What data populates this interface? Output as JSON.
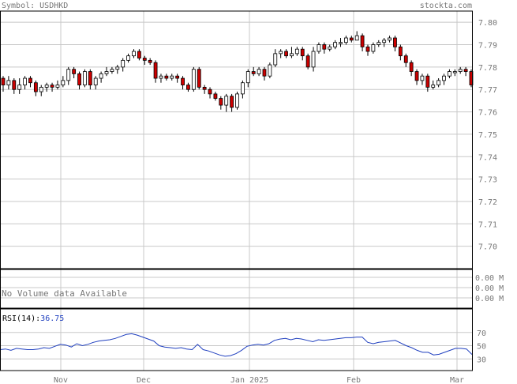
{
  "header": {
    "symbol_label": "Symbol: USDHKD",
    "source": "stockta.com"
  },
  "colors": {
    "grid": "#c8c8c8",
    "frame": "#000000",
    "text": "#777777",
    "up": "#ffffff",
    "down": "#cc0000",
    "wick": "#000000",
    "rsi_line": "#1f3fbf",
    "rsi_value": "#1f3fbf"
  },
  "price_axis": {
    "ticks": [
      "7.80",
      "7.79",
      "7.78",
      "7.77",
      "7.76",
      "7.75",
      "7.74",
      "7.73",
      "7.72",
      "7.71",
      "7.70"
    ]
  },
  "volume_panel": {
    "message": "No Volume data Available",
    "ticks": [
      "0.00 M",
      "0.00 M",
      "0.00 M"
    ]
  },
  "rsi_panel": {
    "label": "RSI(14):",
    "value": "36.75",
    "ticks": [
      "70",
      "50",
      "30"
    ]
  },
  "x_axis": {
    "labels": [
      "Nov",
      "Dec",
      "Jan 2025",
      "Feb",
      "Mar"
    ]
  },
  "chart_data": {
    "type": "candlestick",
    "price_range": [
      7.69,
      7.805
    ],
    "rsi_range": [
      0,
      100
    ],
    "candles": [
      [
        7.775,
        7.772,
        7.776,
        7.769
      ],
      [
        7.772,
        7.774,
        7.776,
        7.77
      ],
      [
        7.774,
        7.77,
        7.775,
        7.768
      ],
      [
        7.77,
        7.772,
        7.775,
        7.768
      ],
      [
        7.772,
        7.775,
        7.776,
        7.77
      ],
      [
        7.775,
        7.773,
        7.776,
        7.771
      ],
      [
        7.773,
        7.769,
        7.774,
        7.767
      ],
      [
        7.769,
        7.771,
        7.772,
        7.767
      ],
      [
        7.771,
        7.772,
        7.773,
        7.769
      ],
      [
        7.772,
        7.771,
        7.773,
        7.769
      ],
      [
        7.771,
        7.772,
        7.774,
        7.77
      ],
      [
        7.772,
        7.774,
        7.776,
        7.771
      ],
      [
        7.774,
        7.779,
        7.78,
        7.772
      ],
      [
        7.779,
        7.777,
        7.78,
        7.775
      ],
      [
        7.777,
        7.772,
        7.778,
        7.77
      ],
      [
        7.772,
        7.778,
        7.779,
        7.771
      ],
      [
        7.778,
        7.772,
        7.779,
        7.77
      ],
      [
        7.772,
        7.775,
        7.776,
        7.77
      ],
      [
        7.775,
        7.777,
        7.778,
        7.773
      ],
      [
        7.777,
        7.778,
        7.78,
        7.776
      ],
      [
        7.778,
        7.779,
        7.78,
        7.777
      ],
      [
        7.779,
        7.78,
        7.781,
        7.777
      ],
      [
        7.78,
        7.783,
        7.784,
        7.778
      ],
      [
        7.783,
        7.785,
        7.786,
        7.782
      ],
      [
        7.785,
        7.787,
        7.788,
        7.784
      ],
      [
        7.787,
        7.784,
        7.788,
        7.783
      ],
      [
        7.784,
        7.783,
        7.785,
        7.781
      ],
      [
        7.783,
        7.782,
        7.784,
        7.781
      ],
      [
        7.782,
        7.775,
        7.783,
        7.773
      ],
      [
        7.775,
        7.776,
        7.777,
        7.773
      ],
      [
        7.776,
        7.775,
        7.777,
        7.774
      ],
      [
        7.775,
        7.776,
        7.777,
        7.774
      ],
      [
        7.776,
        7.775,
        7.777,
        7.773
      ],
      [
        7.775,
        7.772,
        7.776,
        7.77
      ],
      [
        7.772,
        7.77,
        7.773,
        7.769
      ],
      [
        7.77,
        7.779,
        7.78,
        7.769
      ],
      [
        7.779,
        7.771,
        7.78,
        7.77
      ],
      [
        7.771,
        7.77,
        7.772,
        7.768
      ],
      [
        7.77,
        7.768,
        7.771,
        7.766
      ],
      [
        7.768,
        7.766,
        7.769,
        7.765
      ],
      [
        7.766,
        7.763,
        7.767,
        7.761
      ],
      [
        7.763,
        7.767,
        7.768,
        7.76
      ],
      [
        7.767,
        7.762,
        7.768,
        7.76
      ],
      [
        7.762,
        7.768,
        7.769,
        7.761
      ],
      [
        7.768,
        7.773,
        7.774,
        7.766
      ],
      [
        7.773,
        7.778,
        7.779,
        7.771
      ],
      [
        7.778,
        7.777,
        7.78,
        7.776
      ],
      [
        7.777,
        7.779,
        7.78,
        7.776
      ],
      [
        7.779,
        7.776,
        7.78,
        7.774
      ],
      [
        7.776,
        7.781,
        7.782,
        7.775
      ],
      [
        7.781,
        7.786,
        7.788,
        7.78
      ],
      [
        7.786,
        7.787,
        7.788,
        7.784
      ],
      [
        7.787,
        7.785,
        7.788,
        7.784
      ],
      [
        7.785,
        7.786,
        7.789,
        7.784
      ],
      [
        7.786,
        7.788,
        7.789,
        7.785
      ],
      [
        7.788,
        7.785,
        7.789,
        7.783
      ],
      [
        7.785,
        7.78,
        7.786,
        7.779
      ],
      [
        7.78,
        7.787,
        7.789,
        7.778
      ],
      [
        7.787,
        7.79,
        7.791,
        7.786
      ],
      [
        7.79,
        7.788,
        7.791,
        7.786
      ],
      [
        7.788,
        7.789,
        7.79,
        7.787
      ],
      [
        7.789,
        7.791,
        7.792,
        7.788
      ],
      [
        7.791,
        7.791,
        7.793,
        7.789
      ],
      [
        7.791,
        7.793,
        7.794,
        7.79
      ],
      [
        7.793,
        7.792,
        7.794,
        7.791
      ],
      [
        7.792,
        7.794,
        7.796,
        7.792
      ],
      [
        7.794,
        7.789,
        7.795,
        7.787
      ],
      [
        7.789,
        7.787,
        7.79,
        7.785
      ],
      [
        7.787,
        7.79,
        7.791,
        7.786
      ],
      [
        7.79,
        7.791,
        7.792,
        7.789
      ],
      [
        7.791,
        7.792,
        7.793,
        7.789
      ],
      [
        7.792,
        7.793,
        7.794,
        7.791
      ],
      [
        7.793,
        7.789,
        7.794,
        7.787
      ],
      [
        7.789,
        7.785,
        7.79,
        7.783
      ],
      [
        7.785,
        7.782,
        7.786,
        7.78
      ],
      [
        7.782,
        7.778,
        7.783,
        7.776
      ],
      [
        7.778,
        7.774,
        7.779,
        7.772
      ],
      [
        7.774,
        7.776,
        7.777,
        7.772
      ],
      [
        7.776,
        7.771,
        7.777,
        7.769
      ],
      [
        7.771,
        7.772,
        7.774,
        7.77
      ],
      [
        7.772,
        7.774,
        7.775,
        7.771
      ],
      [
        7.774,
        7.776,
        7.777,
        7.772
      ],
      [
        7.776,
        7.778,
        7.779,
        7.775
      ],
      [
        7.778,
        7.778,
        7.779,
        7.776
      ],
      [
        7.778,
        7.779,
        7.78,
        7.777
      ],
      [
        7.779,
        7.778,
        7.78,
        7.776
      ],
      [
        7.778,
        7.772,
        7.779,
        7.771
      ]
    ],
    "rsi": [
      44,
      45,
      43,
      46,
      45,
      44,
      44,
      45,
      47,
      46,
      49,
      52,
      51,
      48,
      53,
      50,
      52,
      55,
      57,
      58,
      59,
      61,
      64,
      67,
      68,
      66,
      63,
      60,
      57,
      50,
      48,
      47,
      46,
      47,
      45,
      44,
      52,
      44,
      42,
      39,
      36,
      34,
      35,
      38,
      43,
      49,
      51,
      52,
      51,
      53,
      58,
      60,
      61,
      59,
      61,
      60,
      58,
      56,
      59,
      58,
      59,
      60,
      61,
      62,
      62,
      63,
      63,
      55,
      53,
      55,
      56,
      57,
      58,
      54,
      50,
      47,
      43,
      40,
      40,
      36,
      37,
      40,
      43,
      46,
      46,
      45,
      36.75
    ]
  }
}
